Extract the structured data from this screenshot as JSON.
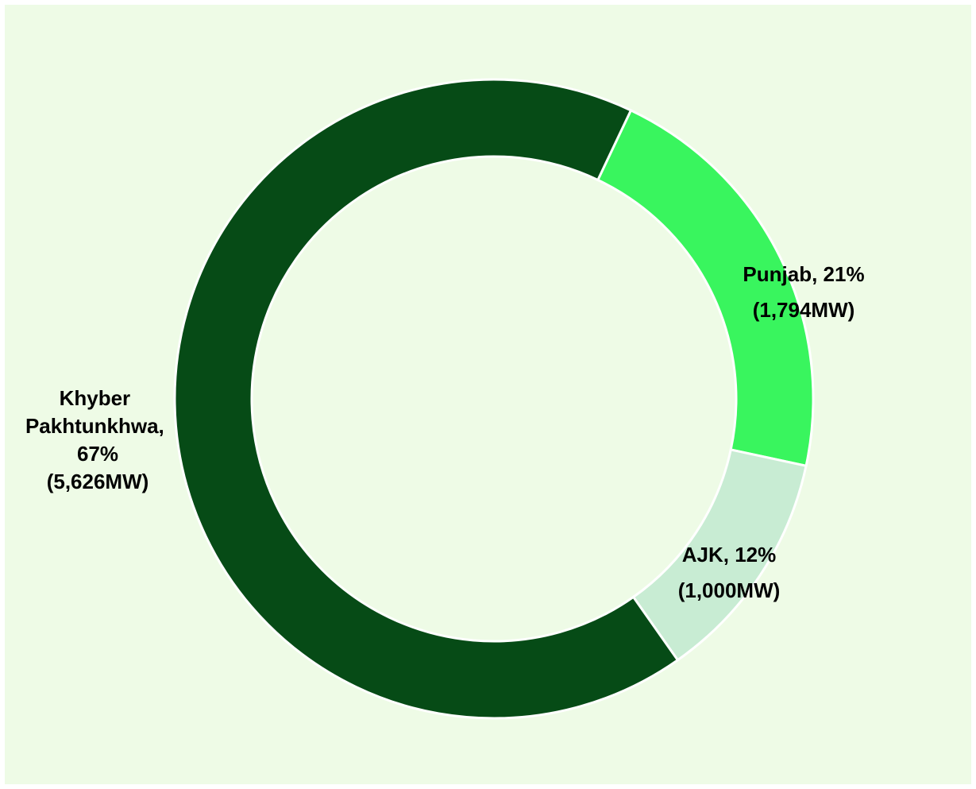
{
  "chart_data": {
    "type": "donut",
    "labels": [
      "Punjab, 21%",
      "AJK, 12%",
      "Khyber Pakhtunkhwa, 67%"
    ],
    "values": [
      1794,
      1000,
      5626
    ],
    "value_labels": [
      "(1,794MW)",
      "(1,000MW)",
      "(5,626MW)"
    ],
    "colors": [
      "#39f55e",
      "#c8ecd3",
      "#064b16"
    ]
  }
}
